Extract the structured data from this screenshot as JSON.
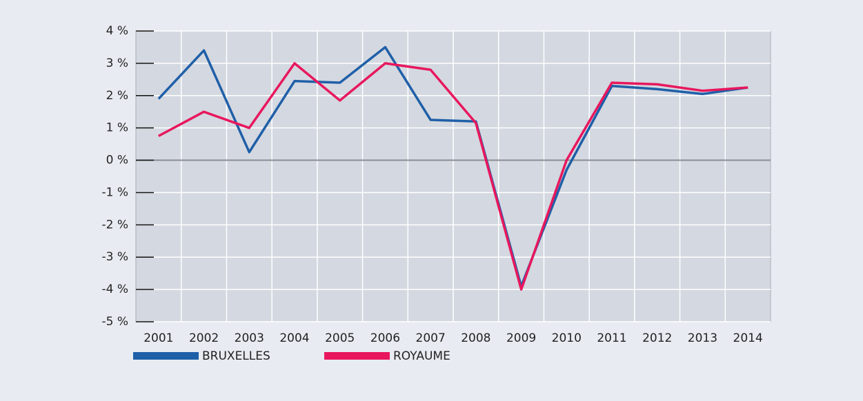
{
  "chart_data": {
    "type": "line",
    "categories": [
      "2001",
      "2002",
      "2003",
      "2004",
      "2005",
      "2006",
      "2007",
      "2008",
      "2009",
      "2010",
      "2011",
      "2012",
      "2013",
      "2014"
    ],
    "series": [
      {
        "name": "BRUXELLES",
        "color": "#1f5fa8",
        "values": [
          1.9,
          3.4,
          0.25,
          2.45,
          2.4,
          3.5,
          1.25,
          1.2,
          -3.9,
          -0.3,
          2.3,
          2.2,
          2.05,
          2.25
        ]
      },
      {
        "name": "ROYAUME",
        "color": "#e8175d",
        "values": [
          0.75,
          1.5,
          1.0,
          3.0,
          1.85,
          3.0,
          2.8,
          1.15,
          -4.0,
          0.0,
          2.4,
          2.35,
          2.15,
          2.25
        ]
      }
    ],
    "ylim": [
      -5,
      4
    ],
    "yticks": [
      {
        "value": 4,
        "label": "4 %"
      },
      {
        "value": 3,
        "label": "3 %"
      },
      {
        "value": 2,
        "label": "2 %"
      },
      {
        "value": 1,
        "label": "1 %"
      },
      {
        "value": 0,
        "label": "0 %"
      },
      {
        "value": -1,
        "label": "-1 %"
      },
      {
        "value": -2,
        "label": "-2 %"
      },
      {
        "value": -3,
        "label": "-3 %"
      },
      {
        "value": -4,
        "label": "-4 %"
      },
      {
        "value": -5,
        "label": "-5 %"
      }
    ],
    "grid": true
  }
}
